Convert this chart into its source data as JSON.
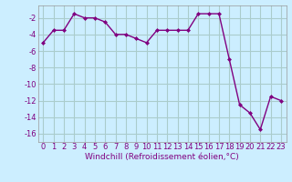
{
  "hours": [
    0,
    1,
    2,
    3,
    4,
    5,
    6,
    7,
    8,
    9,
    10,
    11,
    12,
    13,
    14,
    15,
    16,
    17,
    18,
    19,
    20,
    21,
    22,
    23
  ],
  "values": [
    -5.0,
    -3.5,
    -3.5,
    -1.5,
    -2.0,
    -2.0,
    -2.5,
    -4.0,
    -4.0,
    -4.5,
    -5.0,
    -3.5,
    -3.5,
    -3.5,
    -3.5,
    -1.5,
    -1.5,
    -1.5,
    -7.0,
    -12.5,
    -13.5,
    -15.5,
    -11.5,
    -12.0
  ],
  "line_color": "#800080",
  "marker": "D",
  "marker_size": 2.0,
  "line_width": 1.0,
  "bg_color": "#cceeff",
  "grid_color": "#aacccc",
  "xlabel": "Windchill (Refroidissement éolien,°C)",
  "xlabel_fontsize": 6.5,
  "tick_fontsize": 6.0,
  "ylim": [
    -17,
    -0.5
  ],
  "yticks": [
    -16,
    -14,
    -12,
    -10,
    -8,
    -6,
    -4,
    -2
  ],
  "xlim": [
    -0.5,
    23.5
  ],
  "xticks": [
    0,
    1,
    2,
    3,
    4,
    5,
    6,
    7,
    8,
    9,
    10,
    11,
    12,
    13,
    14,
    15,
    16,
    17,
    18,
    19,
    20,
    21,
    22,
    23
  ]
}
